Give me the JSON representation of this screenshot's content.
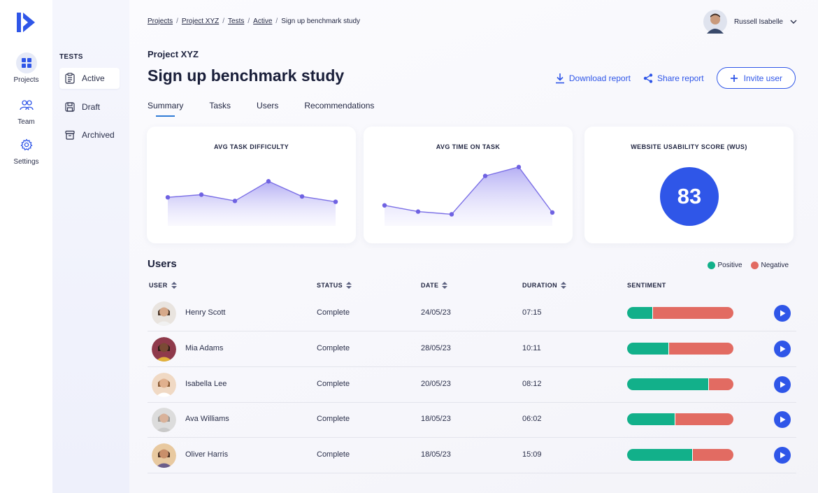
{
  "rail": {
    "items": [
      {
        "label": "Projects",
        "icon": "grid-icon"
      },
      {
        "label": "Team",
        "icon": "team-icon"
      },
      {
        "label": "Settings",
        "icon": "gear-icon"
      }
    ]
  },
  "subnav": {
    "title": "TESTS",
    "items": [
      {
        "label": "Active",
        "icon": "clipboard-icon"
      },
      {
        "label": "Draft",
        "icon": "save-icon"
      },
      {
        "label": "Archived",
        "icon": "archive-icon"
      }
    ]
  },
  "breadcrumbs": [
    "Projects",
    "Project XYZ",
    "Tests",
    "Active",
    "Sign up benchmark study"
  ],
  "user": {
    "name": "Russell Isabelle"
  },
  "header": {
    "project": "Project XYZ",
    "title": "Sign up benchmark study",
    "download_label": "Download report",
    "share_label": "Share report",
    "invite_label": "Invite user"
  },
  "tabs": [
    "Summary",
    "Tasks",
    "Users",
    "Recommendations"
  ],
  "cards": {
    "difficulty": {
      "title": "AVG TASK DIFFICULTY"
    },
    "time": {
      "title": "AVG TIME ON TASK"
    },
    "wus": {
      "title": "WEBSITE USABILITY SCORE (WUS)",
      "score": "83"
    }
  },
  "chart_data": [
    {
      "type": "area",
      "title": "AVG TASK DIFFICULTY",
      "x": [
        1,
        2,
        3,
        4,
        5,
        6
      ],
      "values": [
        3.2,
        3.5,
        2.8,
        5.0,
        3.3,
        2.7
      ],
      "ylim": [
        0,
        8
      ]
    },
    {
      "type": "area",
      "title": "AVG TIME ON TASK",
      "x": [
        1,
        2,
        3,
        4,
        5,
        6
      ],
      "values": [
        2.3,
        1.6,
        1.3,
        5.6,
        6.6,
        1.5
      ],
      "ylim": [
        0,
        8
      ]
    }
  ],
  "users_section": {
    "title": "Users",
    "legend_positive": "Positive",
    "legend_negative": "Negative",
    "positive_color": "#12b08a",
    "negative_color": "#e26b62"
  },
  "table": {
    "headers": {
      "user": "USER",
      "status": "STATUS",
      "date": "DATE",
      "duration": "DURATION",
      "sentiment": "SENTIMENT"
    },
    "rows": [
      {
        "name": "Henry Scott",
        "status": "Complete",
        "date": "24/05/23",
        "duration": "07:15",
        "positive": 0.24
      },
      {
        "name": "Mia Adams",
        "status": "Complete",
        "date": "28/05/23",
        "duration": "10:11",
        "positive": 0.39
      },
      {
        "name": "Isabella Lee",
        "status": "Complete",
        "date": "20/05/23",
        "duration": "08:12",
        "positive": 0.76
      },
      {
        "name": "Ava Williams",
        "status": "Complete",
        "date": "18/05/23",
        "duration": "06:02",
        "positive": 0.45
      },
      {
        "name": "Oliver Harris",
        "status": "Complete",
        "date": "18/05/23",
        "duration": "15:09",
        "positive": 0.61
      }
    ]
  },
  "colors": {
    "accent": "#2f56e8",
    "chart_line": "#7b6fe6"
  }
}
